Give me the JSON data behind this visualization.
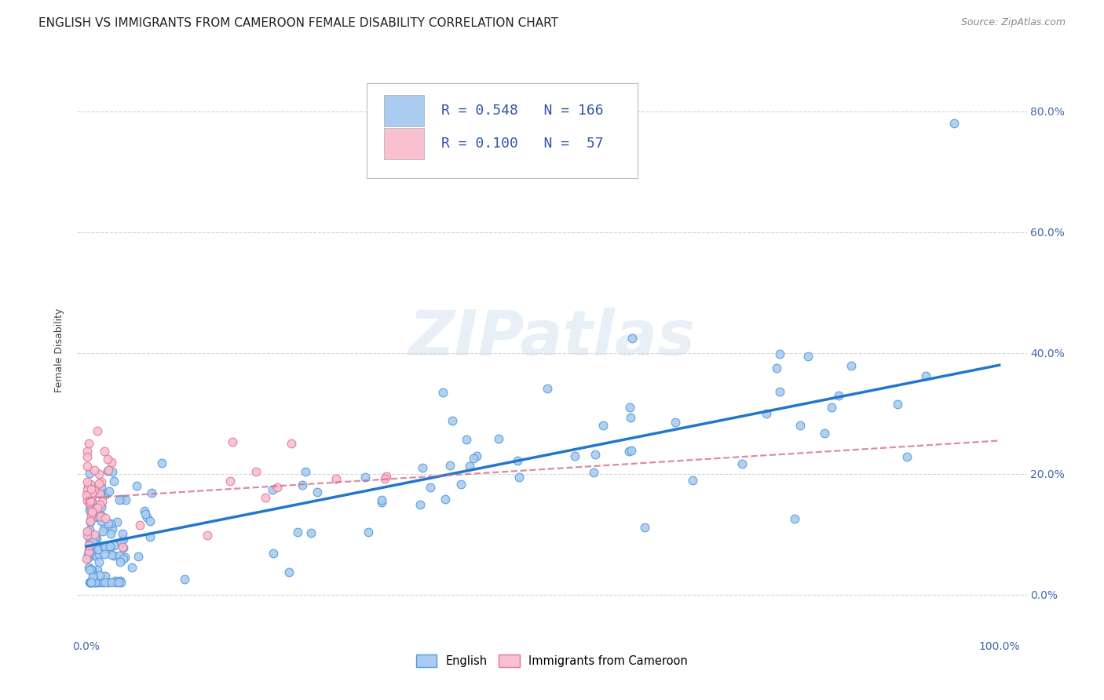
{
  "title": "ENGLISH VS IMMIGRANTS FROM CAMEROON FEMALE DISABILITY CORRELATION CHART",
  "source": "Source: ZipAtlas.com",
  "ylabel": "Female Disability",
  "english_R": 0.548,
  "english_N": 166,
  "cameroon_R": 0.1,
  "cameroon_N": 57,
  "english_color": "#aaccf0",
  "english_edge_color": "#5599dd",
  "english_line_color": "#2277cc",
  "cameroon_color": "#f8c0d0",
  "cameroon_edge_color": "#dd7799",
  "cameroon_line_color": "#cc6688",
  "background_color": "#ffffff",
  "grid_color": "#cccccc",
  "watermark": "ZIPatlas",
  "title_color": "#222222",
  "source_color": "#888888",
  "tick_color": "#4466aa",
  "ylabel_color": "#444444",
  "legend_text_color": "#3355aa",
  "title_fontsize": 11,
  "axis_label_fontsize": 9,
  "tick_fontsize": 10,
  "legend_fontsize": 13
}
